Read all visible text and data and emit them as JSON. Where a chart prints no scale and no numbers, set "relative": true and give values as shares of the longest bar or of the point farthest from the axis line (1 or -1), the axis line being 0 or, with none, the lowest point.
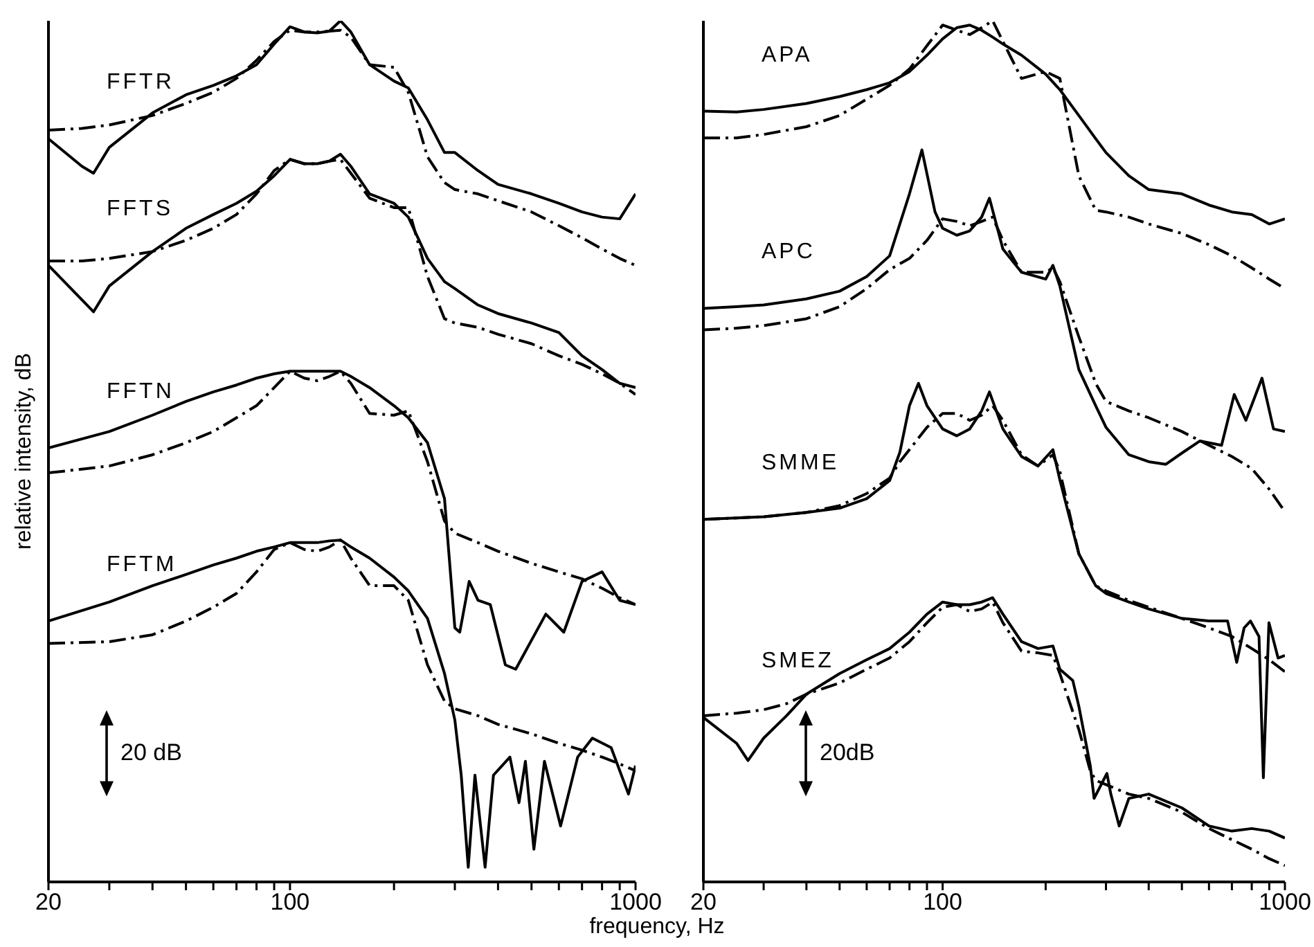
{
  "chart_data": [
    {
      "type": "line",
      "relative": true,
      "log": "x",
      "xlim": [
        20,
        1000
      ],
      "xticks": [
        20,
        {
          "value": 30,
          "label": null
        },
        {
          "value": 40,
          "label": null
        },
        {
          "value": 50,
          "label": null
        },
        {
          "value": 60,
          "label": null
        },
        {
          "value": 70,
          "label": null
        },
        {
          "value": 80,
          "label": null
        },
        {
          "value": 90,
          "label": null
        },
        100,
        {
          "value": 200,
          "label": null
        },
        {
          "value": 300,
          "label": null
        },
        {
          "value": 400,
          "label": null
        },
        {
          "value": 500,
          "label": null
        },
        {
          "value": 600,
          "label": null
        },
        {
          "value": 700,
          "label": null
        },
        {
          "value": 800,
          "label": null
        },
        {
          "value": 900,
          "label": null
        },
        1000
      ],
      "xlabel": "frequency, Hz",
      "ylabel": "relative intensity, dB",
      "annotations": [
        "20 dB"
      ],
      "series": [
        {
          "name": "FFTR",
          "color": "#000000",
          "line_style": "solid",
          "x": [
            20,
            25,
            27,
            30,
            40,
            50,
            60,
            70,
            80,
            90,
            100,
            110,
            120,
            130,
            140,
            150,
            170,
            200,
            220,
            250,
            280,
            300,
            350,
            400,
            500,
            600,
            700,
            800,
            900,
            1000
          ],
          "values": [
            0.863,
            0.831,
            0.823,
            0.853,
            0.893,
            0.914,
            0.925,
            0.936,
            0.949,
            0.973,
            0.993,
            0.987,
            0.986,
            0.988,
            1.0,
            0.987,
            0.949,
            0.93,
            0.922,
            0.885,
            0.847,
            0.847,
            0.826,
            0.81,
            0.799,
            0.788,
            0.778,
            0.772,
            0.77,
            0.799
          ]
        },
        {
          "color": "#000000",
          "line_style": "dashed",
          "x": [
            20,
            25,
            30,
            40,
            50,
            60,
            70,
            80,
            90,
            100,
            110,
            120,
            130,
            140,
            150,
            170,
            200,
            220,
            250,
            280,
            300,
            350,
            400,
            500,
            600,
            700,
            800,
            900,
            1000
          ],
          "values": [
            0.873,
            0.875,
            0.879,
            0.89,
            0.904,
            0.917,
            0.933,
            0.954,
            0.976,
            0.989,
            0.987,
            0.987,
            0.988,
            0.989,
            0.981,
            0.949,
            0.946,
            0.917,
            0.842,
            0.812,
            0.804,
            0.799,
            0.791,
            0.778,
            0.762,
            0.748,
            0.735,
            0.724,
            0.716
          ]
        },
        {
          "name": "FFTS",
          "color": "#000000",
          "line_style": "solid",
          "x": [
            20,
            25,
            27,
            30,
            40,
            50,
            60,
            70,
            80,
            90,
            100,
            110,
            120,
            130,
            140,
            150,
            170,
            200,
            220,
            250,
            280,
            300,
            350,
            400,
            500,
            600,
            700,
            800,
            900,
            1000
          ],
          "values": [
            0.716,
            0.676,
            0.662,
            0.692,
            0.732,
            0.759,
            0.775,
            0.788,
            0.802,
            0.82,
            0.839,
            0.834,
            0.834,
            0.837,
            0.845,
            0.831,
            0.799,
            0.788,
            0.772,
            0.724,
            0.697,
            0.689,
            0.67,
            0.66,
            0.649,
            0.638,
            0.611,
            0.595,
            0.579,
            0.574
          ]
        },
        {
          "color": "#000000",
          "line_style": "dashed",
          "x": [
            20,
            25,
            30,
            40,
            50,
            60,
            70,
            80,
            90,
            100,
            110,
            120,
            130,
            140,
            150,
            170,
            200,
            220,
            250,
            280,
            300,
            350,
            400,
            500,
            600,
            700,
            800,
            900,
            1000
          ],
          "values": [
            0.721,
            0.721,
            0.724,
            0.732,
            0.745,
            0.759,
            0.775,
            0.799,
            0.826,
            0.839,
            0.834,
            0.834,
            0.837,
            0.839,
            0.823,
            0.794,
            0.783,
            0.783,
            0.703,
            0.654,
            0.649,
            0.644,
            0.636,
            0.625,
            0.611,
            0.601,
            0.59,
            0.579,
            0.566
          ]
        },
        {
          "name": "FFTN",
          "color": "#000000",
          "line_style": "solid",
          "x": [
            20,
            30,
            40,
            50,
            60,
            70,
            80,
            90,
            100,
            110,
            120,
            130,
            140,
            150,
            170,
            200,
            220,
            250,
            280,
            300,
            310,
            330,
            350,
            380,
            420,
            450,
            550,
            620,
            700,
            800,
            900,
            1000
          ],
          "values": [
            0.504,
            0.523,
            0.542,
            0.558,
            0.569,
            0.577,
            0.585,
            0.59,
            0.593,
            0.593,
            0.593,
            0.593,
            0.593,
            0.587,
            0.574,
            0.553,
            0.539,
            0.51,
            0.445,
            0.295,
            0.29,
            0.349,
            0.327,
            0.322,
            0.252,
            0.247,
            0.311,
            0.29,
            0.349,
            0.36,
            0.327,
            0.322
          ]
        },
        {
          "color": "#000000",
          "line_style": "dashed",
          "x": [
            20,
            30,
            40,
            50,
            60,
            70,
            80,
            90,
            100,
            110,
            120,
            130,
            140,
            150,
            170,
            200,
            220,
            250,
            280,
            300,
            350,
            400,
            500,
            600,
            700,
            800,
            900,
            1000
          ],
          "values": [
            0.475,
            0.483,
            0.496,
            0.51,
            0.523,
            0.539,
            0.553,
            0.574,
            0.593,
            0.585,
            0.582,
            0.587,
            0.593,
            0.579,
            0.544,
            0.542,
            0.547,
            0.488,
            0.419,
            0.405,
            0.394,
            0.384,
            0.37,
            0.36,
            0.352,
            0.341,
            0.33,
            0.322
          ]
        },
        {
          "name": "FFTM",
          "color": "#000000",
          "line_style": "solid",
          "x": [
            20,
            30,
            40,
            50,
            60,
            70,
            80,
            90,
            100,
            110,
            120,
            130,
            140,
            150,
            170,
            200,
            220,
            250,
            280,
            300,
            313,
            328,
            343,
            367,
            388,
            433,
            460,
            480,
            508,
            545,
            607,
            680,
            750,
            850,
            954,
            1000
          ],
          "values": [
            0.303,
            0.325,
            0.344,
            0.357,
            0.368,
            0.376,
            0.384,
            0.389,
            0.394,
            0.394,
            0.394,
            0.396,
            0.397,
            0.389,
            0.376,
            0.354,
            0.338,
            0.306,
            0.242,
            0.188,
            0.124,
            0.017,
            0.124,
            0.017,
            0.124,
            0.145,
            0.092,
            0.14,
            0.038,
            0.14,
            0.065,
            0.145,
            0.167,
            0.156,
            0.102,
            0.135
          ]
        },
        {
          "color": "#000000",
          "line_style": "dashed",
          "x": [
            20,
            30,
            40,
            50,
            60,
            70,
            80,
            90,
            100,
            110,
            120,
            130,
            140,
            150,
            170,
            200,
            220,
            250,
            280,
            300,
            350,
            400,
            500,
            600,
            700,
            800,
            900,
            1000
          ],
          "values": [
            0.277,
            0.279,
            0.287,
            0.303,
            0.319,
            0.335,
            0.36,
            0.386,
            0.394,
            0.386,
            0.384,
            0.389,
            0.397,
            0.376,
            0.344,
            0.344,
            0.327,
            0.252,
            0.21,
            0.201,
            0.193,
            0.183,
            0.172,
            0.161,
            0.153,
            0.145,
            0.137,
            0.129
          ]
        }
      ]
    },
    {
      "type": "line",
      "relative": true,
      "log": "x",
      "xlim": [
        20,
        1000
      ],
      "xticks": [
        20,
        {
          "value": 30,
          "label": null
        },
        {
          "value": 40,
          "label": null
        },
        {
          "value": 50,
          "label": null
        },
        {
          "value": 60,
          "label": null
        },
        {
          "value": 70,
          "label": null
        },
        {
          "value": 80,
          "label": null
        },
        {
          "value": 90,
          "label": null
        },
        100,
        {
          "value": 200,
          "label": null
        },
        {
          "value": 300,
          "label": null
        },
        {
          "value": 400,
          "label": null
        },
        {
          "value": 500,
          "label": null
        },
        {
          "value": 600,
          "label": null
        },
        {
          "value": 700,
          "label": null
        },
        {
          "value": 800,
          "label": null
        },
        {
          "value": 900,
          "label": null
        },
        1000
      ],
      "annotations": [
        "20dB"
      ],
      "series": [
        {
          "name": "APA",
          "color": "#000000",
          "line_style": "solid",
          "x": [
            20,
            25,
            30,
            40,
            50,
            60,
            70,
            80,
            90,
            100,
            110,
            120,
            130,
            140,
            150,
            170,
            200,
            220,
            250,
            280,
            300,
            350,
            400,
            500,
            600,
            700,
            800,
            900,
            1000
          ],
          "values": [
            0.895,
            0.894,
            0.897,
            0.904,
            0.912,
            0.92,
            0.928,
            0.941,
            0.96,
            0.979,
            0.992,
            0.995,
            0.989,
            0.981,
            0.973,
            0.96,
            0.938,
            0.92,
            0.89,
            0.863,
            0.847,
            0.82,
            0.804,
            0.799,
            0.786,
            0.778,
            0.775,
            0.764,
            0.77
          ]
        },
        {
          "color": "#000000",
          "line_style": "dashed",
          "x": [
            20,
            25,
            30,
            40,
            50,
            60,
            70,
            80,
            90,
            100,
            110,
            120,
            130,
            140,
            150,
            170,
            200,
            220,
            250,
            280,
            300,
            350,
            400,
            500,
            600,
            700,
            800,
            900,
            1000
          ],
          "values": [
            0.864,
            0.864,
            0.868,
            0.877,
            0.89,
            0.909,
            0.925,
            0.944,
            0.971,
            0.995,
            0.989,
            0.984,
            0.992,
            1.0,
            0.976,
            0.933,
            0.941,
            0.933,
            0.82,
            0.78,
            0.778,
            0.772,
            0.764,
            0.753,
            0.74,
            0.727,
            0.713,
            0.7,
            0.689
          ]
        },
        {
          "name": "APC",
          "color": "#000000",
          "line_style": "solid",
          "x": [
            20,
            25,
            30,
            40,
            50,
            60,
            70,
            80,
            87,
            95,
            100,
            110,
            120,
            130,
            137,
            150,
            170,
            200,
            210,
            220,
            250,
            280,
            300,
            350,
            400,
            449,
            500,
            564,
            653,
            711,
            769,
            857,
            926,
            1000
          ],
          "values": [
            0.666,
            0.668,
            0.67,
            0.677,
            0.686,
            0.703,
            0.727,
            0.799,
            0.85,
            0.778,
            0.759,
            0.751,
            0.756,
            0.772,
            0.794,
            0.735,
            0.708,
            0.7,
            0.716,
            0.692,
            0.595,
            0.553,
            0.528,
            0.496,
            0.488,
            0.485,
            0.498,
            0.512,
            0.507,
            0.566,
            0.536,
            0.585,
            0.526,
            0.523
          ]
        },
        {
          "color": "#000000",
          "line_style": "dashed",
          "x": [
            20,
            25,
            30,
            40,
            50,
            60,
            70,
            80,
            90,
            100,
            110,
            120,
            130,
            140,
            150,
            170,
            200,
            210,
            220,
            250,
            280,
            300,
            350,
            400,
            500,
            600,
            700,
            800,
            900,
            1000
          ],
          "values": [
            0.641,
            0.643,
            0.646,
            0.654,
            0.668,
            0.689,
            0.711,
            0.724,
            0.745,
            0.77,
            0.767,
            0.762,
            0.767,
            0.772,
            0.745,
            0.708,
            0.708,
            0.713,
            0.697,
            0.633,
            0.579,
            0.558,
            0.547,
            0.539,
            0.523,
            0.507,
            0.494,
            0.48,
            0.456,
            0.43
          ]
        },
        {
          "name": "SMME",
          "color": "#000000",
          "line_style": "solid",
          "x": [
            20,
            30,
            40,
            50,
            60,
            70,
            75,
            80,
            85,
            90,
            100,
            110,
            120,
            130,
            137,
            145,
            150,
            170,
            190,
            210,
            220,
            250,
            280,
            300,
            350,
            400,
            500,
            600,
            680,
            723,
            760,
            793,
            840,
            865,
            898,
            955,
            1000
          ],
          "values": [
            0.421,
            0.424,
            0.429,
            0.434,
            0.445,
            0.466,
            0.499,
            0.553,
            0.579,
            0.553,
            0.526,
            0.518,
            0.526,
            0.547,
            0.569,
            0.542,
            0.526,
            0.494,
            0.483,
            0.502,
            0.467,
            0.381,
            0.344,
            0.335,
            0.325,
            0.317,
            0.306,
            0.303,
            0.303,
            0.255,
            0.295,
            0.303,
            0.285,
            0.121,
            0.301,
            0.26,
            0.263
          ]
        },
        {
          "color": "#000000",
          "line_style": "dashed",
          "x": [
            20,
            30,
            40,
            50,
            60,
            70,
            75,
            80,
            90,
            100,
            110,
            120,
            130,
            140,
            150,
            170,
            190,
            210,
            220,
            250,
            280,
            300,
            350,
            400,
            500,
            600,
            700,
            800,
            900,
            1000
          ],
          "values": [
            0.421,
            0.424,
            0.429,
            0.437,
            0.451,
            0.469,
            0.488,
            0.502,
            0.528,
            0.544,
            0.544,
            0.536,
            0.542,
            0.553,
            0.536,
            0.496,
            0.483,
            0.496,
            0.477,
            0.381,
            0.344,
            0.338,
            0.327,
            0.319,
            0.306,
            0.295,
            0.285,
            0.271,
            0.258,
            0.244
          ]
        },
        {
          "name": "SMEZ",
          "color": "#000000",
          "line_style": "solid",
          "x": [
            20,
            25,
            27,
            30,
            35,
            40,
            50,
            60,
            70,
            80,
            90,
            100,
            110,
            120,
            130,
            140,
            150,
            170,
            190,
            210,
            220,
            240,
            250,
            270,
            277,
            302,
            310,
            328,
            350,
            400,
            500,
            600,
            700,
            800,
            900,
            1000
          ],
          "values": [
            0.191,
            0.161,
            0.141,
            0.167,
            0.193,
            0.218,
            0.242,
            0.258,
            0.271,
            0.29,
            0.311,
            0.325,
            0.322,
            0.322,
            0.325,
            0.33,
            0.311,
            0.279,
            0.271,
            0.274,
            0.247,
            0.234,
            0.204,
            0.135,
            0.097,
            0.126,
            0.102,
            0.065,
            0.097,
            0.102,
            0.086,
            0.065,
            0.059,
            0.062,
            0.059,
            0.051
          ]
        },
        {
          "color": "#000000",
          "line_style": "dashed",
          "x": [
            20,
            25,
            30,
            35,
            40,
            50,
            60,
            70,
            80,
            90,
            100,
            110,
            120,
            130,
            140,
            150,
            170,
            190,
            210,
            220,
            250,
            270,
            280,
            300,
            350,
            400,
            500,
            600,
            700,
            800,
            900,
            1000
          ],
          "values": [
            0.193,
            0.196,
            0.2,
            0.207,
            0.218,
            0.231,
            0.247,
            0.26,
            0.279,
            0.301,
            0.319,
            0.322,
            0.314,
            0.317,
            0.325,
            0.301,
            0.268,
            0.266,
            0.263,
            0.242,
            0.177,
            0.129,
            0.118,
            0.113,
            0.102,
            0.097,
            0.081,
            0.062,
            0.049,
            0.038,
            0.027,
            0.019
          ]
        }
      ]
    }
  ]
}
